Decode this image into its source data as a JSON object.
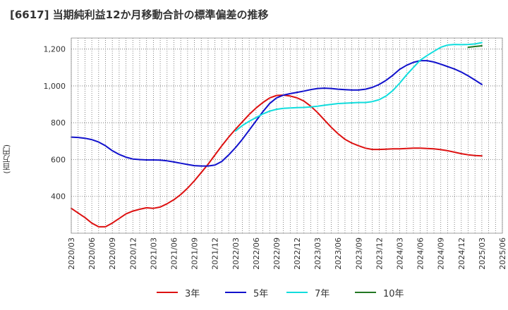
{
  "chart_data": {
    "type": "line",
    "title": "[6617]  当期純利益12か月移動合計の標準偏差の推移",
    "ylabel": "(百万円)",
    "xlabel": "",
    "ylim": [
      200,
      1260
    ],
    "yticks": [
      400,
      600,
      800,
      1000,
      1200
    ],
    "ytick_labels": [
      "400",
      "600",
      "800",
      "1,000",
      "1,200"
    ],
    "xlim": [
      "2020-03",
      "2025-06"
    ],
    "xtick_labels": [
      "2020/03",
      "2020/06",
      "2020/09",
      "2020/12",
      "2021/03",
      "2021/06",
      "2021/09",
      "2021/12",
      "2022/03",
      "2022/06",
      "2022/09",
      "2022/12",
      "2023/03",
      "2023/06",
      "2023/09",
      "2023/12",
      "2024/03",
      "2024/06",
      "2024/09",
      "2024/12",
      "2025/03",
      "2025/06"
    ],
    "grid": true,
    "legend_position": "bottom",
    "series": [
      {
        "name": "3年",
        "color": "#dd1111",
        "x": [
          "2020/03",
          "2020/04",
          "2020/05",
          "2020/06",
          "2020/07",
          "2020/08",
          "2020/09",
          "2020/10",
          "2020/11",
          "2020/12",
          "2021/01",
          "2021/02",
          "2021/03",
          "2021/04",
          "2021/05",
          "2021/06",
          "2021/07",
          "2021/08",
          "2021/09",
          "2021/10",
          "2021/11",
          "2021/12",
          "2022/01",
          "2022/02",
          "2022/03",
          "2022/04",
          "2022/05",
          "2022/06",
          "2022/07",
          "2022/08",
          "2022/09",
          "2022/10",
          "2022/11",
          "2022/12",
          "2023/01",
          "2023/02",
          "2023/03",
          "2023/04",
          "2023/05",
          "2023/06",
          "2023/07",
          "2023/08",
          "2023/09",
          "2023/10",
          "2023/11",
          "2023/12",
          "2024/01",
          "2024/02",
          "2024/03",
          "2024/04",
          "2024/05",
          "2024/06",
          "2024/07",
          "2024/08",
          "2024/09",
          "2024/10",
          "2024/11",
          "2024/12",
          "2025/01",
          "2025/02",
          "2025/03"
        ],
        "values": [
          335,
          310,
          285,
          255,
          235,
          235,
          255,
          280,
          305,
          320,
          330,
          338,
          335,
          342,
          360,
          382,
          410,
          445,
          485,
          530,
          575,
          625,
          675,
          722,
          765,
          805,
          845,
          880,
          910,
          935,
          948,
          950,
          945,
          935,
          918,
          890,
          855,
          815,
          775,
          740,
          710,
          690,
          675,
          662,
          655,
          655,
          656,
          658,
          658,
          660,
          662,
          662,
          660,
          658,
          654,
          648,
          640,
          632,
          626,
          622,
          620
        ]
      },
      {
        "name": "5年",
        "color": "#1111cc",
        "x": [
          "2020/03",
          "2020/04",
          "2020/05",
          "2020/06",
          "2020/07",
          "2020/08",
          "2020/09",
          "2020/10",
          "2020/11",
          "2020/12",
          "2021/01",
          "2021/02",
          "2021/03",
          "2021/04",
          "2021/05",
          "2021/06",
          "2021/07",
          "2021/08",
          "2021/09",
          "2021/10",
          "2021/11",
          "2021/12",
          "2022/01",
          "2022/02",
          "2022/03",
          "2022/04",
          "2022/05",
          "2022/06",
          "2022/07",
          "2022/08",
          "2022/09",
          "2022/10",
          "2022/11",
          "2022/12",
          "2023/01",
          "2023/02",
          "2023/03",
          "2023/04",
          "2023/05",
          "2023/06",
          "2023/07",
          "2023/08",
          "2023/09",
          "2023/10",
          "2023/11",
          "2023/12",
          "2024/01",
          "2024/02",
          "2024/03",
          "2024/04",
          "2024/05",
          "2024/06",
          "2024/07",
          "2024/08",
          "2024/09",
          "2024/10",
          "2024/11",
          "2024/12",
          "2025/01",
          "2025/02",
          "2025/03"
        ],
        "values": [
          722,
          720,
          716,
          708,
          695,
          675,
          648,
          628,
          613,
          603,
          600,
          598,
          598,
          597,
          593,
          587,
          580,
          573,
          567,
          565,
          565,
          570,
          590,
          625,
          665,
          710,
          760,
          810,
          860,
          905,
          935,
          950,
          958,
          965,
          972,
          980,
          986,
          988,
          986,
          982,
          980,
          978,
          978,
          982,
          992,
          1008,
          1030,
          1058,
          1090,
          1112,
          1128,
          1137,
          1137,
          1130,
          1118,
          1105,
          1092,
          1075,
          1055,
          1032,
          1008
        ]
      },
      {
        "name": "7年",
        "color": "#11dddd",
        "x": [
          "2022/03",
          "2022/04",
          "2022/05",
          "2022/06",
          "2022/07",
          "2022/08",
          "2022/09",
          "2022/10",
          "2022/11",
          "2022/12",
          "2023/01",
          "2023/02",
          "2023/03",
          "2023/04",
          "2023/05",
          "2023/06",
          "2023/07",
          "2023/08",
          "2023/09",
          "2023/10",
          "2023/11",
          "2023/12",
          "2024/01",
          "2024/02",
          "2024/03",
          "2024/04",
          "2024/05",
          "2024/06",
          "2024/07",
          "2024/08",
          "2024/09",
          "2024/10",
          "2024/11",
          "2024/12",
          "2025/01",
          "2025/02",
          "2025/03"
        ],
        "values": [
          755,
          785,
          808,
          828,
          848,
          863,
          873,
          878,
          880,
          882,
          883,
          886,
          890,
          895,
          900,
          904,
          906,
          908,
          910,
          910,
          915,
          925,
          945,
          975,
          1015,
          1060,
          1100,
          1140,
          1165,
          1188,
          1210,
          1222,
          1225,
          1224,
          1225,
          1228,
          1235
        ]
      },
      {
        "name": "10年",
        "color": "#227722",
        "x": [
          "2025/01",
          "2025/02",
          "2025/03"
        ],
        "values": [
          1210,
          1214,
          1218
        ]
      }
    ]
  }
}
